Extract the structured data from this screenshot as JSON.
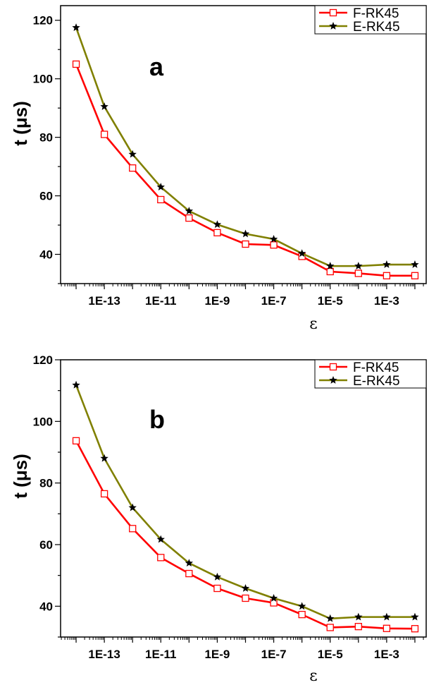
{
  "chart_data": [
    {
      "type": "line",
      "panel_label": "a",
      "ylabel": "t (μs)",
      "xlabel": "ε",
      "x_scale": "log",
      "x": [
        1e-14,
        1e-13,
        1e-12,
        1e-11,
        1e-10,
        1e-09,
        1e-08,
        1e-07,
        1e-06,
        1e-05,
        0.0001,
        0.001,
        0.01
      ],
      "xticks": [
        {
          "value": 1e-13,
          "label": "1E-13"
        },
        {
          "value": 1e-11,
          "label": "1E-11"
        },
        {
          "value": 1e-09,
          "label": "1E-9"
        },
        {
          "value": 1e-07,
          "label": "1E-7"
        },
        {
          "value": 1e-05,
          "label": "1E-5"
        },
        {
          "value": 0.001,
          "label": "1E-3"
        }
      ],
      "yticks": [
        40,
        60,
        80,
        100,
        120
      ],
      "ylim": [
        30,
        125
      ],
      "legend_position": "top-right",
      "series": [
        {
          "name": "F-RK45",
          "color": "#ff0000",
          "marker": "open-square",
          "values": [
            105,
            81,
            69.5,
            58.7,
            52.4,
            47.4,
            43.5,
            43.2,
            39.3,
            34.1,
            33.5,
            32.7,
            32.7
          ]
        },
        {
          "name": "E-RK45",
          "color": "#808000",
          "marker": "star",
          "values": [
            117.5,
            90.5,
            74.2,
            63,
            54.8,
            50.2,
            47,
            45.2,
            40.3,
            36,
            36,
            36.5,
            36.5
          ]
        }
      ]
    },
    {
      "type": "line",
      "panel_label": "b",
      "ylabel": "t (μs)",
      "xlabel": "ε",
      "x_scale": "log",
      "x": [
        1e-14,
        1e-13,
        1e-12,
        1e-11,
        1e-10,
        1e-09,
        1e-08,
        1e-07,
        1e-06,
        1e-05,
        0.0001,
        0.001,
        0.01
      ],
      "xticks": [
        {
          "value": 1e-13,
          "label": "1E-13"
        },
        {
          "value": 1e-11,
          "label": "1E-11"
        },
        {
          "value": 1e-09,
          "label": "1E-9"
        },
        {
          "value": 1e-07,
          "label": "1E-7"
        },
        {
          "value": 1e-05,
          "label": "1E-5"
        },
        {
          "value": 0.001,
          "label": "1E-3"
        }
      ],
      "yticks": [
        40,
        60,
        80,
        100,
        120
      ],
      "ylim": [
        30,
        120
      ],
      "legend_position": "top-right",
      "series": [
        {
          "name": "F-RK45",
          "color": "#ff0000",
          "marker": "open-square",
          "values": [
            93.7,
            76.5,
            65.2,
            55.8,
            50.6,
            45.8,
            42.6,
            41.1,
            37.3,
            33.1,
            33.4,
            32.8,
            32.7
          ]
        },
        {
          "name": "E-RK45",
          "color": "#808000",
          "marker": "star",
          "values": [
            111.8,
            88,
            72,
            61.7,
            54,
            49.5,
            45.8,
            42.6,
            40,
            36,
            36.5,
            36.5,
            36.5
          ]
        }
      ]
    }
  ]
}
